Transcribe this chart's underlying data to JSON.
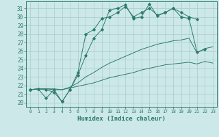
{
  "xlabel": "Humidex (Indice chaleur)",
  "bg_color": "#cce8e8",
  "grid_color": "#aacccc",
  "line_color": "#2d7a6e",
  "xlim": [
    -0.5,
    23.5
  ],
  "ylim": [
    19.5,
    31.8
  ],
  "xticks": [
    0,
    1,
    2,
    3,
    4,
    5,
    6,
    7,
    8,
    9,
    10,
    11,
    12,
    13,
    14,
    15,
    16,
    17,
    18,
    19,
    20,
    21,
    22,
    23
  ],
  "yticks": [
    20,
    21,
    22,
    23,
    24,
    25,
    26,
    27,
    28,
    29,
    30,
    31
  ],
  "line1_x": [
    0,
    1,
    2,
    3,
    4,
    5,
    6,
    7,
    8,
    9,
    10,
    11,
    12,
    13,
    14,
    15,
    16,
    17,
    18,
    19,
    20,
    21,
    22,
    23
  ],
  "line1_y": [
    21.5,
    21.6,
    21.6,
    21.6,
    21.5,
    21.7,
    21.9,
    22.1,
    22.3,
    22.6,
    22.9,
    23.1,
    23.3,
    23.5,
    23.8,
    24.0,
    24.2,
    24.4,
    24.5,
    24.6,
    24.7,
    24.5,
    24.8,
    24.6
  ],
  "line2_x": [
    0,
    1,
    2,
    3,
    4,
    5,
    6,
    7,
    8,
    9,
    10,
    11,
    12,
    13,
    14,
    15,
    16,
    17,
    18,
    19,
    20,
    21,
    22,
    23
  ],
  "line2_y": [
    21.5,
    21.6,
    21.6,
    21.5,
    21.5,
    21.8,
    22.3,
    23.0,
    23.5,
    24.1,
    24.6,
    25.0,
    25.4,
    25.8,
    26.2,
    26.5,
    26.8,
    27.0,
    27.2,
    27.3,
    27.5,
    25.8,
    26.3,
    26.5
  ],
  "line3_x": [
    0,
    1,
    2,
    3,
    4,
    5,
    6,
    7,
    8,
    9,
    10,
    11,
    12,
    13,
    14,
    15,
    16,
    17,
    18,
    19,
    20,
    21,
    22,
    23
  ],
  "line3_y": [
    21.5,
    21.6,
    21.5,
    21.2,
    20.1,
    21.5,
    23.2,
    25.5,
    27.5,
    28.5,
    30.8,
    31.0,
    31.4,
    29.8,
    30.0,
    31.5,
    30.1,
    30.5,
    31.0,
    30.5,
    30.0,
    29.7,
    null,
    null
  ],
  "line3_markers": true,
  "line4_x": [
    0,
    1,
    2,
    3,
    4,
    5,
    6,
    7,
    8,
    9,
    10,
    11,
    12,
    13,
    14,
    15,
    16,
    17,
    18,
    19,
    20,
    21,
    22,
    23
  ],
  "line4_y": [
    21.5,
    21.6,
    20.5,
    21.5,
    20.1,
    21.5,
    23.5,
    28.0,
    28.5,
    29.8,
    30.0,
    30.5,
    31.2,
    30.0,
    30.5,
    31.0,
    30.2,
    30.5,
    31.0,
    30.0,
    29.8,
    25.9,
    26.2,
    null
  ],
  "line4_markers": true
}
